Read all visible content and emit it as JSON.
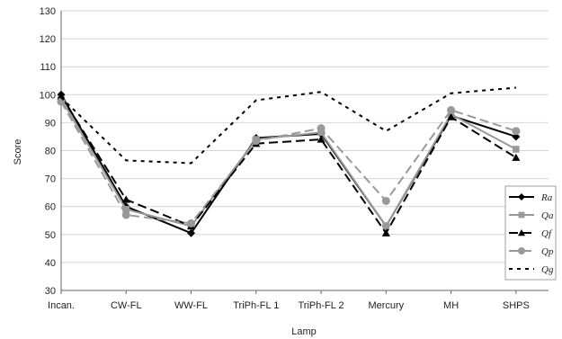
{
  "chart_data": {
    "type": "line",
    "title": "",
    "xlabel": "Lamp",
    "ylabel": "Score",
    "ylim": [
      30,
      130
    ],
    "yticks": [
      30,
      40,
      50,
      60,
      70,
      80,
      90,
      100,
      110,
      120,
      130
    ],
    "grid": "horizontal",
    "legend_position": "right",
    "categories": [
      "Incan.",
      "CW-FL",
      "WW-FL",
      "TriPh-FL 1",
      "TriPh-FL 2",
      "Mercury",
      "MH",
      "SHPS"
    ],
    "series": [
      {
        "name": "Ra",
        "values": [
          100,
          60,
          50.5,
          84.5,
          86,
          53,
          92.5,
          85
        ],
        "color": "#000000",
        "dash": "solid",
        "marker": "diamond"
      },
      {
        "name": "Qa",
        "values": [
          98.5,
          59,
          53,
          84,
          86.5,
          53,
          93,
          80.5
        ],
        "color": "#999999",
        "dash": "solid",
        "marker": "square"
      },
      {
        "name": "Qf",
        "values": [
          99.5,
          62.5,
          53,
          82.5,
          84,
          50.5,
          92,
          77.5
        ],
        "color": "#000000",
        "dash": "longdash",
        "marker": "triangle"
      },
      {
        "name": "Qp",
        "values": [
          97.5,
          57,
          54,
          83.5,
          88,
          62,
          94.5,
          87
        ],
        "color": "#999999",
        "dash": "longdash",
        "marker": "circle"
      },
      {
        "name": "Qg",
        "values": [
          99,
          76.5,
          75.5,
          98,
          101,
          87,
          100.5,
          102.5
        ],
        "color": "#000000",
        "dash": "dashdot",
        "marker": "none"
      }
    ]
  }
}
